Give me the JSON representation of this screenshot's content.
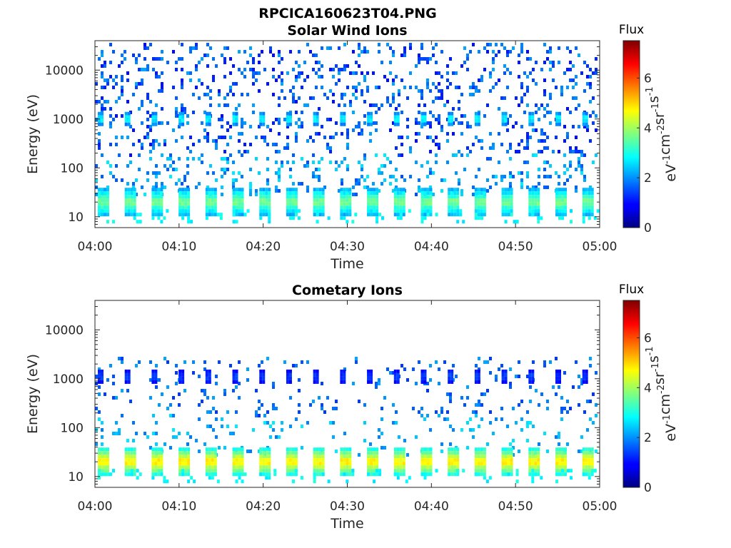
{
  "figure_title": "RPCICA160623T04.PNG",
  "chart_data": [
    {
      "type": "heatmap",
      "title": "Solar Wind Ions",
      "xlabel": "Time",
      "ylabel": "Energy (eV)",
      "x_range": [
        "04:00",
        "05:00"
      ],
      "x_ticks": [
        "04:00",
        "04:10",
        "04:20",
        "04:30",
        "04:40",
        "04:50",
        "05:00"
      ],
      "y_scale": "log",
      "y_range": [
        6,
        40000
      ],
      "y_ticks": [
        10,
        100,
        1000,
        10000
      ],
      "y_tick_labels": [
        "10",
        "100",
        "1000",
        "10000"
      ],
      "colorbar": {
        "label": "Flux",
        "units": "eV^-1 cm^-2 sr^-1 s^-1",
        "range": [
          0,
          7.5
        ],
        "ticks": [
          0,
          2,
          4,
          6
        ]
      },
      "bursts": {
        "period_min": 3.2,
        "count": 19,
        "components": [
          {
            "energy_eV": 1000,
            "flux": 3.0
          },
          {
            "energy_eV": 20,
            "flux": 3.8
          }
        ]
      },
      "background": {
        "energy_range_eV": [
          30,
          40000
        ],
        "flux_range": [
          1.0,
          2.2
        ]
      }
    },
    {
      "type": "heatmap",
      "title": "Cometary Ions",
      "xlabel": "Time",
      "ylabel": "Energy (eV)",
      "x_range": [
        "04:00",
        "05:00"
      ],
      "x_ticks": [
        "04:00",
        "04:10",
        "04:20",
        "04:30",
        "04:40",
        "04:50",
        "05:00"
      ],
      "y_scale": "log",
      "y_range": [
        6,
        40000
      ],
      "y_ticks": [
        10,
        100,
        1000,
        10000
      ],
      "y_tick_labels": [
        "10",
        "100",
        "1000",
        "10000"
      ],
      "colorbar": {
        "label": "Flux",
        "units": "eV^-1 cm^-2 sr^-1 s^-1",
        "range": [
          0,
          7.5
        ],
        "ticks": [
          0,
          2,
          4,
          6
        ]
      },
      "bursts": {
        "period_min": 3.2,
        "count": 19,
        "components": [
          {
            "energy_eV": 1100,
            "flux": 1.5
          },
          {
            "energy_eV": 20,
            "flux": 5.0
          }
        ]
      },
      "background": {
        "energy_range_eV": [
          30,
          3000
        ],
        "flux_range": [
          1.3,
          2.2
        ]
      }
    }
  ]
}
